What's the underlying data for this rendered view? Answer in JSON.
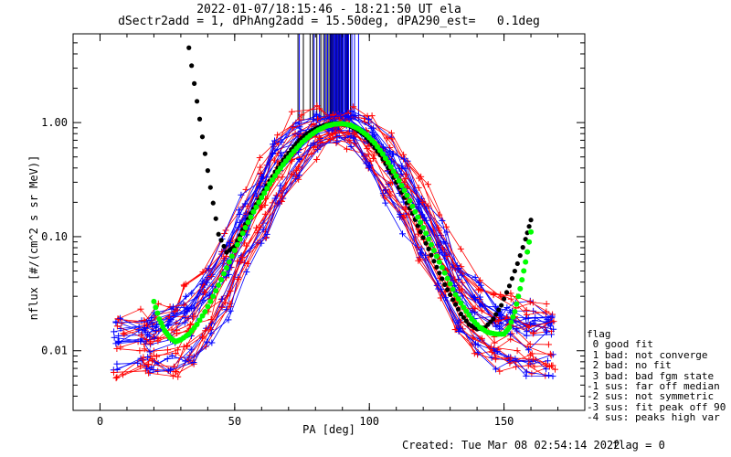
{
  "header": {
    "title_line1": "2022-01-07/18:15:46 - 18:21:50 UT ela",
    "title_line2": "dSectr2add = 1, dPhAng2add = 15.50deg, dPA290_est=   0.1deg"
  },
  "footer": {
    "created": "Created: Tue Mar 08 02:54:14 2022",
    "flag": "flag = 0"
  },
  "legend": {
    "title": "flag",
    "items": [
      " 0 good fit",
      " 1 bad: not converge",
      " 2 bad: no fit",
      " 3 bad: bad fgm state",
      "-1 sus: far off median",
      "-2 sus: not symmetric",
      "-3 sus: fit peak off 90",
      "-4 sus: peaks high var"
    ]
  },
  "colors": {
    "series_a": "#ff0000",
    "series_b": "#0000ff",
    "fit_a": "#000000",
    "fit_b": "#00ff00"
  },
  "chart_data": {
    "type": "line",
    "xlabel": "PA [deg]",
    "ylabel": "nflux [#/(cm^2 s sr MeV)]",
    "xlim": [
      -10,
      180
    ],
    "ylim": [
      0.003,
      6.0
    ],
    "yscale": "log",
    "x_ticks": [
      0,
      50,
      100,
      150
    ],
    "x_tick_labels": [
      "0",
      "50",
      "100",
      "150"
    ],
    "y_ticks": [
      0.01,
      0.1,
      1.0
    ],
    "y_tick_labels": [
      "0.01",
      "0.10",
      "1.00"
    ],
    "grid": false,
    "vertical_marks": {
      "pa_black": [
        73.5,
        75.5,
        78.0,
        79.0,
        80.5,
        82.0,
        83.0,
        84.0,
        85.0,
        85.5,
        86.0,
        86.5,
        87.0,
        87.5,
        88.0,
        88.5,
        89.0,
        89.5,
        90.0,
        91.0,
        91.5,
        92.0,
        93.0
      ],
      "pa_blue": [
        74.0,
        79.5,
        81.5,
        83.5,
        84.5,
        85.7,
        86.3,
        86.9,
        87.3,
        87.8,
        88.3,
        88.8,
        89.3,
        89.8,
        90.3,
        90.8,
        91.3,
        91.8,
        92.3,
        93.5,
        94.5,
        96.0
      ],
      "from_flux": 1.05
    },
    "fit_black": {
      "x": [
        32.0,
        35.0,
        38.0,
        41.0,
        44.0,
        47.0,
        50.0,
        53.0,
        56.0,
        59.0,
        62.0,
        65.0,
        68.0,
        71.0,
        74.0,
        77.0,
        80.0,
        83.0,
        86.0,
        89.0,
        92.0,
        95.0,
        98.0,
        101.0,
        104.0,
        107.0,
        110.0,
        113.0,
        116.0,
        119.0,
        122.0,
        125.0,
        128.0,
        131.0,
        134.0,
        137.0,
        140.0,
        143.0,
        146.0,
        149.0,
        152.0,
        155.0,
        158.0,
        160.0
      ],
      "y": [
        6.5,
        2.2,
        0.75,
        0.27,
        0.105,
        0.073,
        0.082,
        0.115,
        0.16,
        0.21,
        0.28,
        0.37,
        0.47,
        0.58,
        0.7,
        0.8,
        0.88,
        0.94,
        0.98,
        0.98,
        0.95,
        0.88,
        0.78,
        0.65,
        0.52,
        0.4,
        0.3,
        0.22,
        0.16,
        0.11,
        0.078,
        0.054,
        0.038,
        0.028,
        0.021,
        0.017,
        0.0155,
        0.016,
        0.019,
        0.025,
        0.037,
        0.058,
        0.095,
        0.14
      ]
    },
    "fit_green": {
      "x": [
        20.0,
        22.0,
        24.0,
        26.0,
        28.0,
        30.0,
        33.0,
        36.0,
        39.0,
        42.0,
        45.0,
        48.0,
        51.0,
        54.0,
        57.0,
        60.0,
        63.0,
        66.0,
        69.0,
        72.0,
        75.0,
        78.0,
        81.0,
        84.0,
        87.0,
        90.0,
        93.0,
        96.0,
        99.0,
        102.0,
        105.0,
        108.0,
        111.0,
        114.0,
        117.0,
        120.0,
        123.0,
        126.0,
        129.0,
        132.0,
        135.0,
        138.0,
        141.0,
        144.0,
        147.0,
        150.0,
        152.0,
        154.0,
        156.0,
        158.0,
        160.0
      ],
      "y": [
        0.027,
        0.019,
        0.015,
        0.013,
        0.012,
        0.0125,
        0.014,
        0.017,
        0.022,
        0.03,
        0.042,
        0.06,
        0.085,
        0.12,
        0.165,
        0.22,
        0.29,
        0.37,
        0.46,
        0.56,
        0.67,
        0.77,
        0.86,
        0.93,
        0.97,
        0.98,
        0.95,
        0.88,
        0.78,
        0.66,
        0.53,
        0.41,
        0.31,
        0.23,
        0.165,
        0.12,
        0.085,
        0.06,
        0.043,
        0.031,
        0.024,
        0.019,
        0.016,
        0.0145,
        0.014,
        0.014,
        0.016,
        0.022,
        0.035,
        0.06,
        0.11
      ]
    },
    "series_spread": {
      "x": [
        7.0,
        16.0,
        20.0,
        27.0,
        33.0,
        40.0,
        47.0,
        53.0,
        60.0,
        66.0,
        73.0,
        80.0,
        87.0,
        93.0,
        100.0,
        107.0,
        113.0,
        120.0,
        127.0,
        133.0,
        140.0,
        147.0,
        153.0,
        160.0,
        167.0
      ],
      "median": [
        0.011,
        0.012,
        0.012,
        0.013,
        0.016,
        0.026,
        0.048,
        0.1,
        0.2,
        0.38,
        0.6,
        0.82,
        0.95,
        0.88,
        0.65,
        0.42,
        0.25,
        0.13,
        0.06,
        0.032,
        0.02,
        0.015,
        0.014,
        0.013,
        0.013
      ],
      "spread_dex": [
        0.25,
        0.25,
        0.27,
        0.3,
        0.33,
        0.35,
        0.37,
        0.35,
        0.33,
        0.3,
        0.25,
        0.18,
        0.08,
        0.12,
        0.2,
        0.28,
        0.32,
        0.35,
        0.35,
        0.33,
        0.32,
        0.3,
        0.3,
        0.3,
        0.3
      ]
    }
  }
}
